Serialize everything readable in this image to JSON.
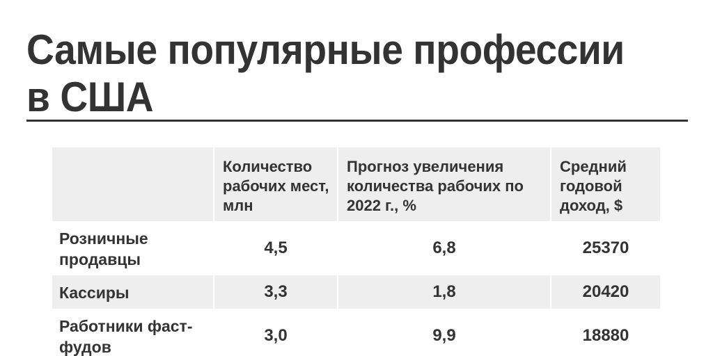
{
  "title": "Самые популярные профессии в США",
  "table": {
    "headers": [
      "",
      "Количество рабочих мест, млн",
      "Прогноз увеличения количества рабочих по 2022 г., %",
      "Средний годовой доход, $"
    ],
    "rows": [
      {
        "profession": "Розничные продавцы",
        "jobs_mln": "4,5",
        "growth_2022_pct": "6,8",
        "avg_income_usd": "25370"
      },
      {
        "profession": "Кассиры",
        "jobs_mln": "3,3",
        "growth_2022_pct": "1,8",
        "avg_income_usd": "20420"
      },
      {
        "profession": "Работники фаст-фудов",
        "jobs_mln": "3,0",
        "growth_2022_pct": "9,9",
        "avg_income_usd": "18880"
      }
    ]
  }
}
